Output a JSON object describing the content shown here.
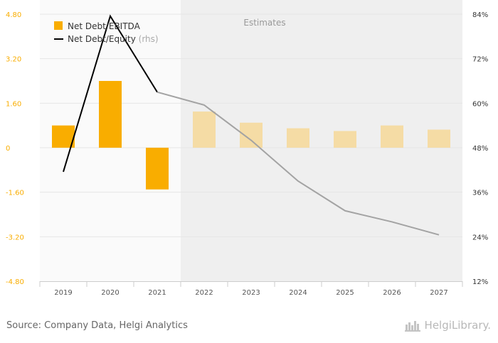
{
  "chart_data": {
    "type": "bar",
    "categories": [
      "2019",
      "2020",
      "2021",
      "2022",
      "2023",
      "2024",
      "2025",
      "2026",
      "2027"
    ],
    "estimate_from_index": 3,
    "estimates_label": "Estimates",
    "series": [
      {
        "name": "Net Debt/EBITDA",
        "type": "bar",
        "axis": "left",
        "values": [
          0.8,
          2.4,
          -1.5,
          1.3,
          0.9,
          0.7,
          0.6,
          0.8,
          0.65
        ]
      },
      {
        "name": "Net Debt/Equity",
        "type": "line",
        "axis": "right",
        "values": [
          41.5,
          83.5,
          63.0,
          59.5,
          50.0,
          39.0,
          31.0,
          28.0,
          24.5
        ]
      }
    ],
    "legend": [
      {
        "label": "Net Debt/EBITDA",
        "suffix": ""
      },
      {
        "label": "Net Debt/Equity",
        "suffix": "(rhs)"
      }
    ],
    "y_left": {
      "ylim": [
        -4.8,
        4.8
      ],
      "ticks": [
        4.8,
        3.2,
        1.6,
        0,
        -1.6,
        -3.2,
        -4.8
      ],
      "tick_labels": [
        "4.80",
        "3.20",
        "1.60",
        "0",
        "-1.60",
        "-3.20",
        "-4.80"
      ]
    },
    "y_right": {
      "ylim": [
        12,
        84
      ],
      "ticks": [
        84,
        72,
        60,
        48,
        36,
        24,
        12
      ],
      "tick_labels": [
        "84%",
        "72%",
        "60%",
        "48%",
        "36%",
        "24%",
        "12%"
      ]
    },
    "grid": true,
    "legend_position": "top-left"
  },
  "colors": {
    "bar_actual": "#f9ad00",
    "bar_estimate": "#f5dca5",
    "line_actual": "#000000",
    "line_estimate": "#a3a3a3",
    "estimates_bg": "#efefef",
    "left_tick": "#f9ad00",
    "right_tick": "#333333"
  },
  "footer": {
    "source": "Source: Company Data, Helgi Analytics",
    "logo_text": "HelgiLibrary."
  }
}
